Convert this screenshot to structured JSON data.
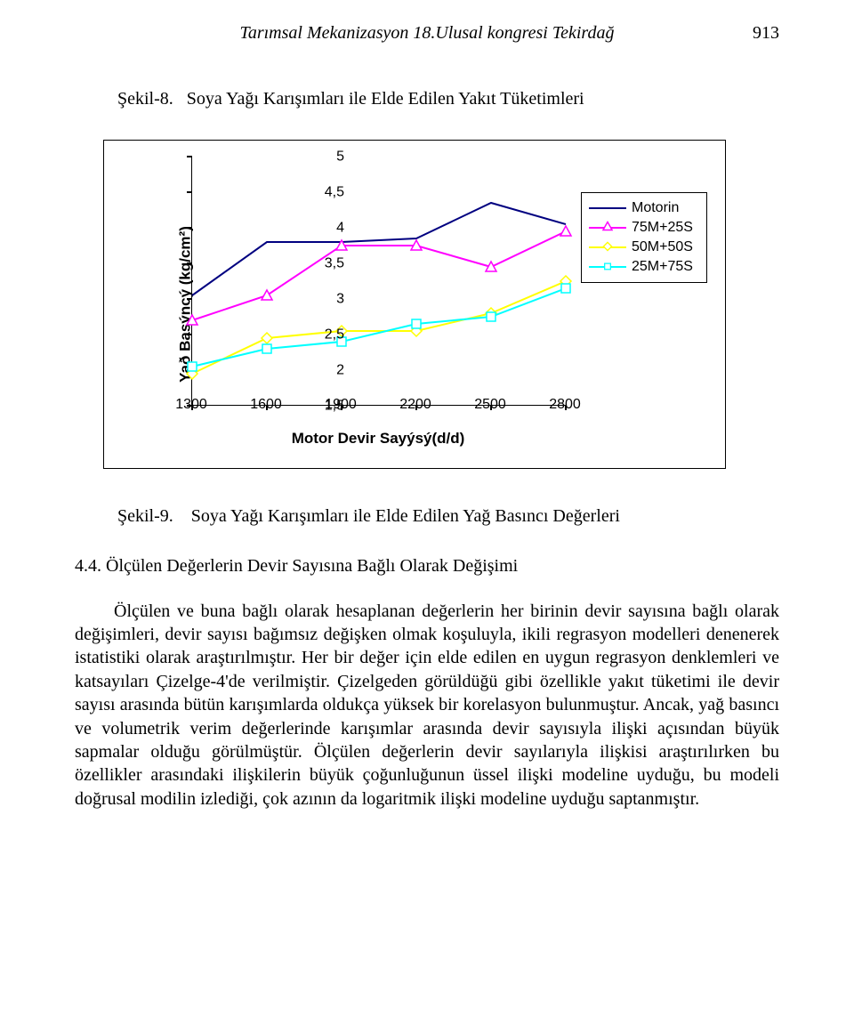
{
  "header": {
    "title": "Tarımsal Mekanizasyon 18.Ulusal kongresi Tekirdağ",
    "page_number": "913"
  },
  "fig8": {
    "caption_label": "Şekil-8.",
    "caption_text": "Soya Yağı Karışımları ile Elde Edilen Yakıt Tüketimleri"
  },
  "chart": {
    "type": "line",
    "y_label": "Yað Basýncý (kg/cm²)",
    "x_label": "Motor Devir Sayýsý(d/d)",
    "x_ticks": [
      "1300",
      "1600",
      "1900",
      "2200",
      "2500",
      "2800"
    ],
    "y_ticks": [
      "1,5",
      "2",
      "2,5",
      "3",
      "3,5",
      "4",
      "4,5",
      "5"
    ],
    "y_min": 1.5,
    "y_max": 5.0,
    "x_values": [
      1300,
      1600,
      1900,
      2200,
      2500,
      2800
    ],
    "series": [
      {
        "name": "Motorin",
        "color": "#000080",
        "marker": "none",
        "values": [
          3.05,
          3.8,
          3.8,
          3.85,
          4.35,
          4.05
        ]
      },
      {
        "name": "75M+25S",
        "color": "#ff00ff",
        "marker": "triangle",
        "values": [
          2.7,
          3.05,
          3.75,
          3.75,
          3.45,
          3.95
        ]
      },
      {
        "name": "50M+50S",
        "color": "#ffff00",
        "marker": "diamond",
        "values": [
          1.95,
          2.45,
          2.55,
          2.55,
          2.8,
          3.25
        ]
      },
      {
        "name": "25M+75S",
        "color": "#00ffff",
        "marker": "square",
        "values": [
          2.05,
          2.3,
          2.4,
          2.65,
          2.75,
          3.15
        ]
      }
    ],
    "legend": [
      "Motorin",
      "75M+25S",
      "50M+50S",
      "25M+75S"
    ]
  },
  "fig9": {
    "caption_label": "Şekil-9.",
    "caption_text": "Soya Yağı Karışımları ile Elde Edilen Yağ Basıncı Değerleri"
  },
  "section": {
    "heading": "4.4. Ölçülen Değerlerin Devir Sayısına Bağlı Olarak Değişimi"
  },
  "body": {
    "text": "Ölçülen ve buna bağlı olarak hesaplanan değerlerin her birinin devir sayısına bağlı olarak değişimleri, devir sayısı bağımsız değişken olmak koşuluyla, ikili regrasyon modelleri denenerek istatistiki olarak araştırılmıştır. Her bir değer için elde edilen en uygun regrasyon denklemleri ve katsayıları Çizelge-4'de verilmiştir. Çizelgeden görüldüğü gibi özellikle yakıt tüketimi ile devir sayısı arasında bütün karışımlarda oldukça yüksek bir korelasyon bulunmuştur. Ancak, yağ basıncı ve volumetrik verim değerlerinde karışımlar arasında devir sayısıyla ilişki açısından büyük sapmalar olduğu görülmüştür. Ölçülen değerlerin devir sayılarıyla ilişkisi araştırılırken bu özellikler arasındaki ilişkilerin büyük çoğunluğunun üssel ilişki modeline uyduğu, bu modeli doğrusal modilin izlediği, çok azının da logaritmik ilişki modeline uyduğu saptanmıştır."
  }
}
